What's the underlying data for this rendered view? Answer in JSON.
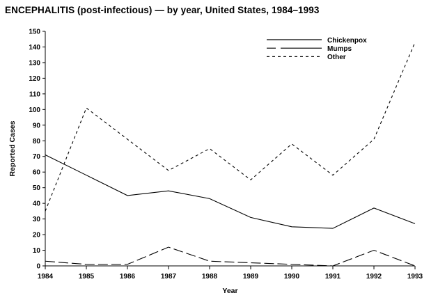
{
  "title": "ENCEPHALITIS (post-infectious) — by year, United States, 1984–1993",
  "chart_data": {
    "type": "line",
    "title": "ENCEPHALITIS (post-infectious) — by year, United States, 1984–1993",
    "xlabel": "Year",
    "ylabel": "Reported Cases",
    "x": [
      1984,
      1985,
      1986,
      1987,
      1988,
      1989,
      1990,
      1991,
      1992,
      1993
    ],
    "ylim": [
      0,
      150
    ],
    "ytick_step": 10,
    "grid": "off",
    "legend_position": "top-right-inside",
    "line_color": "#000000",
    "background_color": "#ffffff",
    "series": [
      {
        "name": "Chickenpox",
        "dash": "solid",
        "values": [
          71,
          58,
          45,
          48,
          43,
          31,
          25,
          24,
          37,
          27
        ]
      },
      {
        "name": "Mumps",
        "dash": "long-dash",
        "values": [
          3,
          1,
          1,
          12,
          3,
          2,
          1,
          0,
          10,
          0
        ]
      },
      {
        "name": "Other",
        "dash": "short-dash",
        "values": [
          35,
          101,
          81,
          61,
          75,
          55,
          78,
          58,
          81,
          143
        ]
      }
    ]
  }
}
